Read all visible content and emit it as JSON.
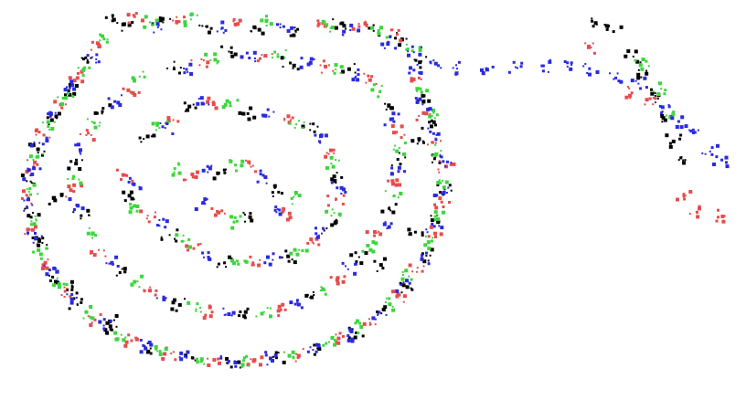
{
  "chart_data": {
    "type": "scatter",
    "title": "",
    "xlabel": "",
    "ylabel": "",
    "grid": false,
    "legend": "none",
    "xlim": [
      0,
      100
    ],
    "ylim": [
      0,
      54
    ],
    "series": [
      {
        "color": "#000000",
        "points": [
          [
            14.4,
            52.1
          ],
          [
            16.7,
            51.5
          ],
          [
            21.3,
            51.9
          ],
          [
            27.3,
            51.3
          ],
          [
            33.9,
            51.1
          ],
          [
            39.7,
            50.9
          ],
          [
            45.6,
            51.7
          ],
          [
            50.1,
            50.7
          ],
          [
            54.0,
            49.5
          ],
          [
            56.4,
            46.3
          ],
          [
            57.0,
            41.6
          ],
          [
            57.7,
            37.9
          ],
          [
            59.2,
            33.1
          ],
          [
            59.8,
            28.5
          ],
          [
            59.0,
            24.0
          ],
          [
            57.3,
            19.2
          ],
          [
            54.7,
            14.8
          ],
          [
            51.4,
            11.7
          ],
          [
            47.7,
            8.4
          ],
          [
            42.4,
            6.2
          ],
          [
            36.8,
            4.9
          ],
          [
            31.1,
            4.4
          ],
          [
            25.3,
            4.9
          ],
          [
            19.6,
            6.2
          ],
          [
            14.3,
            8.8
          ],
          [
            9.6,
            12.3
          ],
          [
            6.2,
            16.2
          ],
          [
            4.1,
            20.8
          ],
          [
            3.5,
            25.2
          ],
          [
            3.2,
            29.6
          ],
          [
            4.2,
            34.1
          ],
          [
            6.1,
            38.2
          ],
          [
            8.4,
            42.3
          ],
          [
            11.0,
            46.3
          ],
          [
            22.8,
            45.6
          ],
          [
            30.3,
            47.8
          ],
          [
            38.7,
            46.2
          ],
          [
            46.8,
            45.4
          ],
          [
            52.5,
            39.9
          ],
          [
            53.4,
            32.7
          ],
          [
            52.2,
            25.8
          ],
          [
            48.1,
            19.0
          ],
          [
            41.1,
            13.7
          ],
          [
            32.6,
            11.3
          ],
          [
            23.6,
            12.3
          ],
          [
            16.0,
            16.9
          ],
          [
            10.1,
            24.8
          ],
          [
            9.4,
            32.1
          ],
          [
            13.0,
            39.4
          ],
          [
            19.2,
            35.9
          ],
          [
            24.9,
            40.1
          ],
          [
            32.9,
            39.1
          ],
          [
            41.4,
            36.8
          ],
          [
            44.7,
            30.3
          ],
          [
            44.4,
            23.5
          ],
          [
            38.4,
            19.1
          ],
          [
            29.7,
            18.2
          ],
          [
            22.2,
            22.1
          ],
          [
            16.7,
            27.6
          ],
          [
            29.0,
            30.8
          ],
          [
            37.1,
            28.1
          ],
          [
            33.2,
            24.6
          ],
          [
            6.4,
            27.3
          ],
          [
            4.8,
            21.0
          ],
          [
            8.9,
            14.8
          ],
          [
            14.0,
            10.0
          ],
          [
            51.1,
            17.9
          ],
          [
            55.8,
            22.5
          ],
          [
            56.1,
            34.9
          ],
          [
            80.6,
            51.6
          ],
          [
            82.9,
            50.6
          ],
          [
            85.6,
            47.1
          ],
          [
            87.4,
            44.7
          ],
          [
            88.6,
            41.6
          ],
          [
            89.7,
            38.5
          ],
          [
            91.1,
            35.2
          ],
          [
            92.7,
            32.6
          ]
        ]
      },
      {
        "color": "#e74c4c",
        "points": [
          [
            17.4,
            52.7
          ],
          [
            23.5,
            52.0
          ],
          [
            31.2,
            51.6
          ],
          [
            42.5,
            51.4
          ],
          [
            48.1,
            51.3
          ],
          [
            53.3,
            50.2
          ],
          [
            56.3,
            44.1
          ],
          [
            57.1,
            39.1
          ],
          [
            58.6,
            35.0
          ],
          [
            60.0,
            31.7
          ],
          [
            59.4,
            26.7
          ],
          [
            58.5,
            22.3
          ],
          [
            56.1,
            17.5
          ],
          [
            53.3,
            13.5
          ],
          [
            49.6,
            9.8
          ],
          [
            45.3,
            7.6
          ],
          [
            39.7,
            5.3
          ],
          [
            33.8,
            4.6
          ],
          [
            28.3,
            4.6
          ],
          [
            22.4,
            5.5
          ],
          [
            17.0,
            7.3
          ],
          [
            12.0,
            10.2
          ],
          [
            7.9,
            14.2
          ],
          [
            5.2,
            18.2
          ],
          [
            3.5,
            22.8
          ],
          [
            2.9,
            27.4
          ],
          [
            3.6,
            31.8
          ],
          [
            5.0,
            36.1
          ],
          [
            7.3,
            40.4
          ],
          [
            9.6,
            44.1
          ],
          [
            12.6,
            48.5
          ],
          [
            26.3,
            45.9
          ],
          [
            35.3,
            47.2
          ],
          [
            43.5,
            45.7
          ],
          [
            49.6,
            43.8
          ],
          [
            53.2,
            36.5
          ],
          [
            53.2,
            29.1
          ],
          [
            50.2,
            22.0
          ],
          [
            45.1,
            15.8
          ],
          [
            37.4,
            11.6
          ],
          [
            28.0,
            11.3
          ],
          [
            19.5,
            14.3
          ],
          [
            12.5,
            20.0
          ],
          [
            9.1,
            28.2
          ],
          [
            10.8,
            36.1
          ],
          [
            16.9,
            42.1
          ],
          [
            22.7,
            38.2
          ],
          [
            28.2,
            40.7
          ],
          [
            37.9,
            38.2
          ],
          [
            43.7,
            33.6
          ],
          [
            44.9,
            27.0
          ],
          [
            41.7,
            21.1
          ],
          [
            33.6,
            18.2
          ],
          [
            25.5,
            20.2
          ],
          [
            19.2,
            24.8
          ],
          [
            16.1,
            30.5
          ],
          [
            25.3,
            30.6
          ],
          [
            33.6,
            31.8
          ],
          [
            38.6,
            25.1
          ],
          [
            28.7,
            25.4
          ],
          [
            79.5,
            48.4
          ],
          [
            85.4,
            42.0
          ],
          [
            87.9,
            41.2
          ],
          [
            92.5,
            27.8
          ],
          [
            94.3,
            25.3
          ],
          [
            97.8,
            24.7
          ]
        ]
      },
      {
        "color": "#3cd63c",
        "points": [
          [
            19.5,
            51.9
          ],
          [
            25.1,
            52.3
          ],
          [
            35.4,
            52.0
          ],
          [
            44.2,
            51.1
          ],
          [
            50.8,
            50.3
          ],
          [
            55.4,
            47.9
          ],
          [
            56.5,
            42.6
          ],
          [
            58.1,
            38.8
          ],
          [
            59.3,
            33.9
          ],
          [
            59.2,
            29.4
          ],
          [
            58.8,
            24.9
          ],
          [
            57.6,
            21.1
          ],
          [
            54.9,
            16.3
          ],
          [
            52.3,
            12.4
          ],
          [
            48.4,
            9.2
          ],
          [
            44.0,
            7.1
          ],
          [
            38.6,
            5.1
          ],
          [
            32.3,
            4.5
          ],
          [
            26.6,
            4.7
          ],
          [
            20.9,
            5.8
          ],
          [
            15.6,
            8.1
          ],
          [
            10.8,
            11.3
          ],
          [
            7.1,
            15.2
          ],
          [
            4.6,
            19.4
          ],
          [
            3.3,
            24.0
          ],
          [
            3.1,
            28.6
          ],
          [
            4.0,
            33.0
          ],
          [
            5.6,
            37.3
          ],
          [
            8.0,
            41.3
          ],
          [
            10.4,
            45.2
          ],
          [
            13.7,
            49.5
          ],
          [
            27.8,
            46.6
          ],
          [
            37.0,
            47.1
          ],
          [
            44.9,
            45.3
          ],
          [
            51.0,
            42.3
          ],
          [
            53.6,
            34.3
          ],
          [
            52.8,
            27.5
          ],
          [
            49.3,
            20.6
          ],
          [
            43.1,
            14.6
          ],
          [
            35.1,
            11.3
          ],
          [
            25.8,
            11.7
          ],
          [
            17.8,
            15.6
          ],
          [
            11.1,
            22.3
          ],
          [
            9.0,
            30.0
          ],
          [
            11.9,
            37.8
          ],
          [
            18.1,
            44.3
          ],
          [
            20.8,
            37.1
          ],
          [
            30.5,
            40.2
          ],
          [
            39.5,
            37.6
          ],
          [
            44.3,
            32.1
          ],
          [
            44.7,
            25.2
          ],
          [
            39.9,
            20.0
          ],
          [
            31.6,
            18.0
          ],
          [
            23.9,
            21.2
          ],
          [
            17.8,
            26.1
          ],
          [
            22.9,
            31.4
          ],
          [
            31.2,
            31.9
          ],
          [
            38.9,
            27.2
          ],
          [
            31.0,
            23.9
          ],
          [
            86.6,
            45.9
          ],
          [
            89.4,
            42.6
          ],
          [
            90.9,
            39.1
          ]
        ]
      },
      {
        "color": "#2a2ae0",
        "points": [
          [
            20.6,
            51.2
          ],
          [
            29.4,
            51.1
          ],
          [
            37.8,
            51.3
          ],
          [
            46.9,
            50.8
          ],
          [
            52.1,
            49.1
          ],
          [
            55.6,
            45.2
          ],
          [
            56.8,
            40.4
          ],
          [
            58.3,
            36.3
          ],
          [
            59.6,
            32.4
          ],
          [
            59.5,
            27.9
          ],
          [
            58.4,
            23.3
          ],
          [
            56.7,
            18.7
          ],
          [
            53.9,
            15.1
          ],
          [
            50.7,
            11.0
          ],
          [
            46.6,
            8.0
          ],
          [
            41.8,
            6.0
          ],
          [
            36.0,
            4.8
          ],
          [
            30.3,
            4.4
          ],
          [
            24.3,
            5.1
          ],
          [
            18.6,
            6.6
          ],
          [
            13.2,
            9.4
          ],
          [
            8.7,
            13.1
          ],
          [
            5.8,
            17.2
          ],
          [
            3.9,
            21.6
          ],
          [
            3.4,
            26.3
          ],
          [
            3.4,
            30.6
          ],
          [
            4.4,
            35.0
          ],
          [
            6.6,
            39.2
          ],
          [
            8.9,
            43.1
          ],
          [
            11.6,
            47.0
          ],
          [
            24.5,
            45.3
          ],
          [
            33.1,
            46.9
          ],
          [
            41.2,
            46.0
          ],
          [
            48.0,
            44.6
          ],
          [
            52.7,
            38.4
          ],
          [
            53.5,
            31.0
          ],
          [
            51.7,
            23.9
          ],
          [
            46.6,
            17.3
          ],
          [
            39.4,
            12.4
          ],
          [
            30.3,
            11.0
          ],
          [
            21.5,
            13.0
          ],
          [
            14.3,
            18.2
          ],
          [
            9.5,
            26.3
          ],
          [
            10.0,
            34.0
          ],
          [
            14.7,
            40.8
          ],
          [
            21.6,
            37.1
          ],
          [
            26.7,
            40.5
          ],
          [
            35.3,
            38.8
          ],
          [
            42.7,
            35.2
          ],
          [
            45.1,
            28.7
          ],
          [
            43.0,
            22.3
          ],
          [
            36.3,
            18.6
          ],
          [
            27.5,
            19.0
          ],
          [
            20.8,
            23.4
          ],
          [
            17.3,
            29.2
          ],
          [
            27.4,
            31.7
          ],
          [
            35.3,
            30.2
          ],
          [
            36.8,
            25.3
          ],
          [
            26.8,
            26.6
          ],
          [
            55.6,
            47.7
          ],
          [
            58.6,
            46.1
          ],
          [
            61.5,
            45.4
          ],
          [
            65.5,
            45.4
          ],
          [
            69.5,
            45.6
          ],
          [
            73.3,
            45.8
          ],
          [
            76.6,
            45.7
          ],
          [
            79.6,
            45.4
          ],
          [
            83.2,
            44.1
          ],
          [
            86.3,
            43.3
          ],
          [
            89.6,
            40.0
          ],
          [
            91.8,
            38.0
          ],
          [
            93.8,
            36.4
          ],
          [
            96.1,
            33.8
          ],
          [
            97.7,
            32.6
          ]
        ]
      }
    ]
  }
}
